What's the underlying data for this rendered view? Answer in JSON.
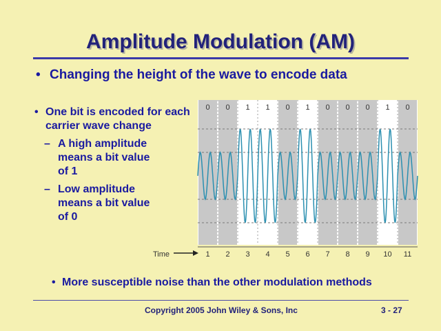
{
  "title": "Amplitude Modulation (AM)",
  "main_bullet": "Changing the height of the wave to encode data",
  "left_list": {
    "item1": "One bit is encoded for each carrier wave change",
    "sub1": "A high amplitude means a bit value of 1",
    "sub2": "Low amplitude means a bit value of 0",
    "sub_marker": "–",
    "bullet_marker": "•"
  },
  "diagram": {
    "bits": [
      "0",
      "0",
      "1",
      "1",
      "0",
      "1",
      "0",
      "0",
      "0",
      "1",
      "0"
    ],
    "time_label": "Time",
    "time_ticks": [
      "1",
      "2",
      "3",
      "4",
      "5",
      "6",
      "7",
      "8",
      "9",
      "10",
      "11"
    ],
    "colors": {
      "panel": "#ffffff",
      "shaded": "#c8c8c8",
      "wave": "#2a8fb0",
      "dash": "#777777"
    }
  },
  "bottom_bullet": "More susceptible noise than the other modulation methods",
  "footer": "Copyright 2005 John Wiley & Sons, Inc",
  "page": "3 - 27"
}
